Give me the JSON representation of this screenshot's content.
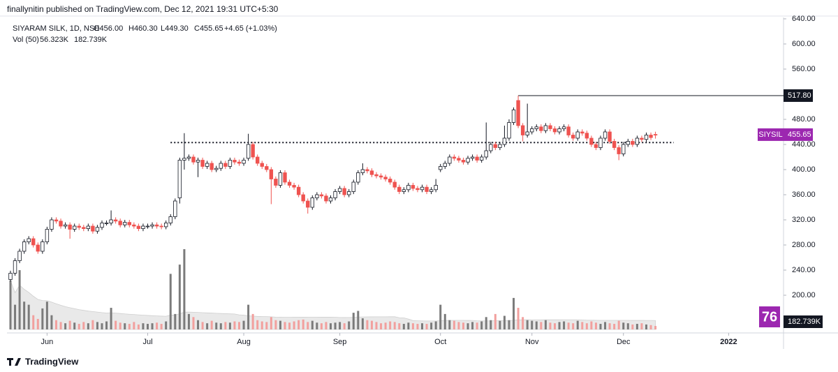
{
  "header": "finallynitin published on TradingView.com, Dec 12, 2021 19:31 UTC+5:30",
  "footer": "TradingView",
  "chart_data": {
    "type": "candlestick",
    "symbol": "SIYARAM SILK, 1D, NSE",
    "legend": [
      "O456.00",
      "H460.30",
      "L449.30",
      "C455.65",
      "+4.65 (+1.03%)"
    ],
    "volume_legend": [
      "Vol (50)",
      "56.323K",
      "182.739K"
    ],
    "open": [
      225,
      235,
      255,
      270,
      285,
      290,
      280,
      270,
      285,
      305,
      320,
      318,
      310,
      312,
      305,
      310,
      308,
      306,
      310,
      302,
      308,
      315,
      315,
      320,
      318,
      312,
      316,
      312,
      310,
      306,
      310,
      310,
      312,
      310,
      309,
      315,
      325,
      355,
      415,
      418,
      420,
      412,
      415,
      405,
      410,
      400,
      402,
      410,
      405,
      415,
      412,
      410,
      418,
      440,
      420,
      410,
      405,
      400,
      385,
      375,
      395,
      380,
      375,
      372,
      360,
      350,
      340,
      355,
      360,
      358,
      350,
      355,
      365,
      370,
      360,
      365,
      380,
      395,
      400,
      398,
      392,
      390,
      388,
      385,
      380,
      372,
      365,
      368,
      375,
      370,
      368,
      372,
      365,
      368,
      400,
      405,
      410,
      420,
      418,
      415,
      412,
      418,
      420,
      415,
      420,
      430,
      440,
      435,
      440,
      450,
      475,
      510,
      470,
      455,
      460,
      465,
      468,
      462,
      470,
      465,
      460,
      465,
      468,
      455,
      450,
      460,
      458,
      450,
      440,
      435,
      450,
      460,
      445,
      435,
      425,
      440,
      445,
      440,
      450,
      448,
      455,
      456
    ],
    "high": [
      239,
      259,
      274,
      289,
      294,
      294,
      284,
      289,
      309,
      324,
      324,
      322,
      316,
      316,
      314,
      314,
      312,
      314,
      314,
      312,
      319,
      319,
      335,
      324,
      322,
      320,
      320,
      316,
      314,
      314,
      314,
      316,
      316,
      314,
      319,
      329,
      354,
      419,
      458,
      424,
      424,
      419,
      419,
      414,
      414,
      406,
      414,
      414,
      419,
      419,
      416,
      419,
      457,
      444,
      424,
      414,
      409,
      404,
      389,
      399,
      399,
      384,
      379,
      376,
      364,
      354,
      359,
      364,
      364,
      362,
      359,
      369,
      374,
      374,
      369,
      384,
      399,
      410,
      404,
      402,
      396,
      394,
      392,
      389,
      384,
      376,
      372,
      379,
      379,
      374,
      376,
      376,
      372,
      385,
      409,
      414,
      424,
      424,
      422,
      419,
      422,
      424,
      424,
      424,
      475,
      444,
      444,
      444,
      470,
      480,
      499,
      517.8,
      474,
      505,
      469,
      472,
      472,
      474,
      474,
      469,
      469,
      472,
      472,
      459,
      464,
      464,
      462,
      454,
      444,
      454,
      464,
      464,
      449,
      439,
      444,
      449,
      449,
      454,
      454,
      459,
      459,
      460.3
    ],
    "low": [
      222,
      231,
      251,
      266,
      281,
      276,
      266,
      266,
      281,
      301,
      314,
      306,
      306,
      290,
      301,
      304,
      302,
      302,
      298,
      298,
      304,
      311,
      311,
      314,
      308,
      308,
      308,
      306,
      302,
      302,
      306,
      306,
      306,
      305,
      305,
      311,
      321,
      346,
      400,
      414,
      408,
      388,
      401,
      401,
      396,
      396,
      398,
      401,
      401,
      408,
      406,
      406,
      414,
      416,
      406,
      401,
      396,
      345,
      371,
      371,
      376,
      371,
      368,
      356,
      346,
      330,
      336,
      351,
      354,
      346,
      346,
      351,
      361,
      356,
      356,
      361,
      376,
      391,
      394,
      388,
      386,
      384,
      381,
      376,
      368,
      361,
      361,
      364,
      366,
      364,
      364,
      361,
      361,
      364,
      396,
      401,
      406,
      414,
      411,
      408,
      408,
      414,
      411,
      411,
      416,
      426,
      431,
      431,
      436,
      446,
      471,
      466,
      445,
      451,
      456,
      461,
      458,
      458,
      461,
      456,
      456,
      461,
      451,
      446,
      446,
      454,
      446,
      436,
      431,
      431,
      446,
      441,
      431,
      415,
      421,
      436,
      436,
      436,
      444,
      444,
      447,
      449.3
    ],
    "close": [
      235,
      255,
      270,
      285,
      290,
      280,
      270,
      285,
      305,
      320,
      318,
      310,
      312,
      305,
      310,
      308,
      306,
      310,
      302,
      308,
      315,
      315,
      320,
      318,
      312,
      316,
      312,
      310,
      306,
      310,
      310,
      312,
      310,
      309,
      315,
      325,
      350,
      415,
      418,
      420,
      412,
      415,
      405,
      410,
      400,
      402,
      410,
      405,
      415,
      412,
      410,
      415,
      440,
      420,
      410,
      405,
      400,
      385,
      375,
      395,
      380,
      375,
      372,
      360,
      350,
      340,
      355,
      360,
      358,
      350,
      355,
      365,
      370,
      360,
      365,
      380,
      395,
      400,
      398,
      392,
      390,
      388,
      385,
      380,
      372,
      365,
      368,
      375,
      370,
      368,
      372,
      365,
      368,
      375,
      405,
      410,
      420,
      418,
      415,
      412,
      418,
      420,
      415,
      420,
      430,
      440,
      435,
      440,
      450,
      475,
      495,
      470,
      455,
      460,
      465,
      468,
      462,
      470,
      465,
      460,
      465,
      468,
      455,
      450,
      460,
      458,
      450,
      440,
      435,
      450,
      460,
      445,
      435,
      425,
      440,
      445,
      440,
      450,
      448,
      455,
      451,
      455.65
    ],
    "volume": [
      790,
      400,
      960,
      450,
      400,
      230,
      170,
      340,
      450,
      230,
      150,
      120,
      100,
      140,
      110,
      90,
      120,
      100,
      150,
      120,
      100,
      130,
      350,
      140,
      110,
      100,
      90,
      120,
      80,
      100,
      90,
      100,
      110,
      90,
      130,
      900,
      250,
      1050,
      1300,
      250,
      200,
      150,
      120,
      100,
      140,
      110,
      100,
      120,
      110,
      130,
      120,
      140,
      400,
      250,
      150,
      130,
      120,
      200,
      150,
      140,
      120,
      110,
      130,
      150,
      160,
      120,
      140,
      110,
      100,
      120,
      100,
      110,
      120,
      100,
      130,
      270,
      300,
      180,
      150,
      140,
      120,
      100,
      110,
      130,
      120,
      100,
      90,
      110,
      100,
      90,
      100,
      90,
      110,
      130,
      400,
      250,
      150,
      140,
      120,
      110,
      100,
      120,
      110,
      130,
      200,
      150,
      250,
      140,
      220,
      150,
      510,
      350,
      200,
      150,
      140,
      130,
      120,
      150,
      110,
      100,
      120,
      130,
      110,
      100,
      140,
      120,
      100,
      130,
      110,
      90,
      120,
      100,
      90,
      140,
      110,
      100,
      80,
      90,
      100,
      80,
      70,
      56.323
    ],
    "ylim": [
      140,
      642.2
    ],
    "yticks": [
      {
        "value": 200,
        "label": "200.00"
      },
      {
        "value": 240,
        "label": "240.00"
      },
      {
        "value": 280,
        "label": "280.00"
      },
      {
        "value": 320,
        "label": "320.00"
      },
      {
        "value": 360,
        "label": "360.00"
      },
      {
        "value": 400,
        "label": "400.00"
      },
      {
        "value": 440,
        "label": "440.00"
      },
      {
        "value": 480,
        "label": "480.00"
      },
      {
        "value": 560,
        "label": "560.00"
      },
      {
        "value": 600,
        "label": "600.00"
      },
      {
        "value": 640,
        "label": "640.00"
      }
    ],
    "xlim": [
      -0.76,
      169
    ],
    "xticks": [
      {
        "value": 8,
        "label": "Jun"
      },
      {
        "value": 30,
        "label": "Jul"
      },
      {
        "value": 51,
        "label": "Aug"
      },
      {
        "value": 72,
        "label": "Sep"
      },
      {
        "value": 94,
        "label": "Oct"
      },
      {
        "value": 114,
        "label": "Nov"
      },
      {
        "value": 134,
        "label": "Dec"
      },
      {
        "value": 157,
        "label": "2022"
      }
    ],
    "hlines": [
      {
        "value": 443,
        "from": 35,
        "to": 145,
        "style": "dotted"
      },
      {
        "value": 517.8,
        "from": 111,
        "label": "517.80"
      }
    ],
    "last_price": {
      "symbol": "SIYSIL",
      "value": 455.65,
      "label": "455.65",
      "color": "#9c27b0"
    },
    "volume_ma": {
      "period": 50,
      "label": "182.739K"
    },
    "badge": "76",
    "up_color": "#ffffff",
    "down_color": "#ef5350",
    "border_color": "#131722",
    "volume_up_color": "#7b7b7b",
    "volume_down_color": "#f2a09e",
    "volume_ma_color": "#e3e3e3"
  }
}
